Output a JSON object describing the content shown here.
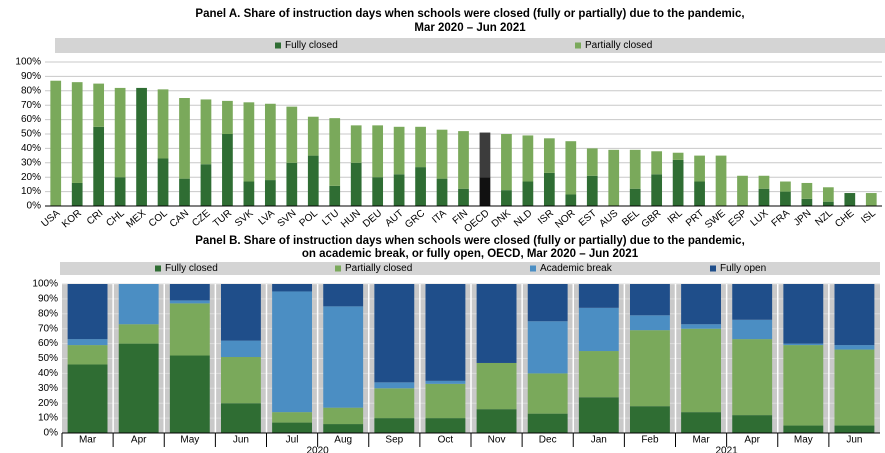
{
  "chart_data": [
    {
      "type": "bar",
      "stacked": true,
      "title": [
        "Panel A. Share of instruction days when schools were closed (fully or partially) due to the pandemic,",
        "Mar 2020 – Jun 2021"
      ],
      "categories": [
        "USA",
        "KOR",
        "CRI",
        "CHL",
        "MEX",
        "COL",
        "CAN",
        "CZE",
        "TUR",
        "SVK",
        "LVA",
        "SVN",
        "POL",
        "LTU",
        "HUN",
        "DEU",
        "AUT",
        "GRC",
        "ITA",
        "FIN",
        "OECD",
        "DNK",
        "NLD",
        "ISR",
        "NOR",
        "EST",
        "AUS",
        "BEL",
        "GBR",
        "IRL",
        "PRT",
        "SWE",
        "ESP",
        "LUX",
        "FRA",
        "JPN",
        "NZL",
        "CHE",
        "ISL"
      ],
      "series": [
        {
          "name": "Fully closed",
          "color": "#2f6d33",
          "highlight_color": "#111111",
          "values": [
            0,
            16,
            55,
            20,
            82,
            33,
            19,
            29,
            50,
            17,
            18,
            30,
            35,
            14,
            30,
            20,
            22,
            27,
            19,
            12,
            20,
            11,
            17,
            23,
            8,
            21,
            0,
            12,
            22,
            32,
            17,
            0,
            0,
            12,
            10,
            5,
            3,
            9,
            0
          ]
        },
        {
          "name": "Partially closed",
          "color": "#7aa95b",
          "highlight_color": "#3c3c3c",
          "values": [
            87,
            70,
            30,
            62,
            0,
            48,
            56,
            45,
            23,
            55,
            53,
            39,
            27,
            47,
            26,
            36,
            33,
            28,
            34,
            40,
            31,
            39,
            32,
            24,
            37,
            19,
            39,
            27,
            16,
            5,
            18,
            35,
            21,
            9,
            7,
            11,
            10,
            0,
            9
          ]
        }
      ],
      "highlight_index": 20,
      "ylim": [
        0,
        100
      ],
      "yticks": [
        {
          "value": 0,
          "label": "0%"
        },
        {
          "value": 10,
          "label": "10%"
        },
        {
          "value": 20,
          "label": "20%"
        },
        {
          "value": 30,
          "label": "30%"
        },
        {
          "value": 40,
          "label": "40%"
        },
        {
          "value": 50,
          "label": "50%"
        },
        {
          "value": 60,
          "label": "60%"
        },
        {
          "value": 70,
          "label": "70%"
        },
        {
          "value": 80,
          "label": "80%"
        },
        {
          "value": 90,
          "label": "90%"
        },
        {
          "value": 100,
          "label": "100%"
        }
      ],
      "grid": true,
      "legend": "top"
    },
    {
      "type": "bar",
      "stacked": true,
      "title": [
        "Panel B. Share of instruction days when schools were closed (fully or partially) due to the pandemic,",
        "on academic break, or fully open, OECD, Mar 2020 – Jun 2021"
      ],
      "categories": [
        "Mar",
        "Apr",
        "May",
        "Jun",
        "Jul",
        "Aug",
        "Sep",
        "Oct",
        "Nov",
        "Dec",
        "Jan",
        "Feb",
        "Mar",
        "Apr",
        "May",
        "Jun"
      ],
      "x_groups": [
        {
          "label": "2020",
          "size": 10
        },
        {
          "label": "2021",
          "size": 6
        }
      ],
      "series": [
        {
          "name": "Fully closed",
          "color": "#2f6d33",
          "values": [
            46,
            60,
            52,
            20,
            7,
            6,
            10,
            10,
            16,
            13,
            24,
            18,
            14,
            12,
            5,
            5
          ]
        },
        {
          "name": "Partially closed",
          "color": "#7aa95b",
          "values": [
            13,
            13,
            35,
            31,
            7,
            11,
            20,
            23,
            31,
            27,
            31,
            51,
            56,
            51,
            54,
            51
          ]
        },
        {
          "name": "Academic break",
          "color": "#4b8ec3",
          "values": [
            4,
            27,
            2,
            11,
            81,
            68,
            4,
            2,
            0,
            35,
            29,
            10,
            3,
            13,
            1,
            3
          ]
        },
        {
          "name": "Fully open",
          "color": "#1f4e8a",
          "values": [
            37,
            0,
            11,
            38,
            5,
            15,
            66,
            65,
            53,
            25,
            16,
            21,
            27,
            24,
            40,
            41
          ]
        }
      ],
      "ylim": [
        0,
        100
      ],
      "yticks": [
        {
          "value": 0,
          "label": "0%"
        },
        {
          "value": 10,
          "label": "10%"
        },
        {
          "value": 20,
          "label": "20%"
        },
        {
          "value": 30,
          "label": "30%"
        },
        {
          "value": 40,
          "label": "40%"
        },
        {
          "value": 50,
          "label": "50%"
        },
        {
          "value": 60,
          "label": "60%"
        },
        {
          "value": 70,
          "label": "70%"
        },
        {
          "value": 80,
          "label": "80%"
        },
        {
          "value": 90,
          "label": "90%"
        },
        {
          "value": 100,
          "label": "100%"
        }
      ],
      "grid": true,
      "legend": "top"
    }
  ]
}
